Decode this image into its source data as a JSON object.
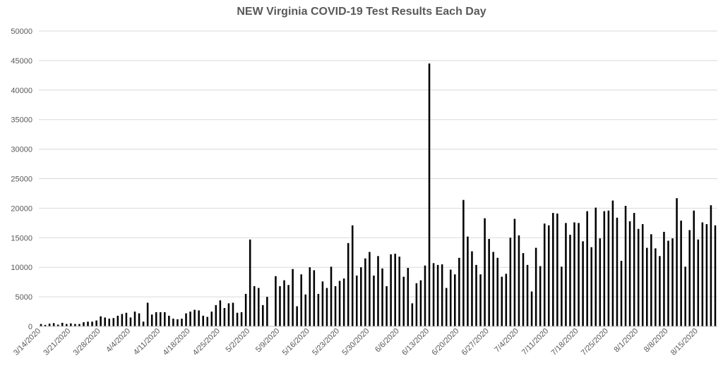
{
  "chart_data": {
    "type": "bar",
    "title": "NEW Virginia COVID-19 Test Results Each Day",
    "xlabel": "",
    "ylabel": "",
    "ylim": [
      0,
      50000
    ],
    "yticks": [
      0,
      5000,
      10000,
      15000,
      20000,
      25000,
      30000,
      35000,
      40000,
      45000,
      50000
    ],
    "grid": true,
    "bar_color": "#000000",
    "start_date": "3/14/2020",
    "xtick_labels": [
      "3/14/2020",
      "3/21/2020",
      "3/28/2020",
      "4/4/2020",
      "4/11/2020",
      "4/18/2020",
      "4/25/2020",
      "5/2/2020",
      "5/9/2020",
      "5/16/2020",
      "5/23/2020",
      "5/30/2020",
      "6/6/2020",
      "6/13/2020",
      "6/20/2020",
      "6/27/2020",
      "7/4/2020",
      "7/11/2020",
      "7/18/2020",
      "7/25/2020",
      "8/1/2020",
      "8/8/2020",
      "8/15/2020"
    ],
    "values": [
      400,
      250,
      450,
      550,
      300,
      600,
      400,
      500,
      400,
      400,
      700,
      800,
      800,
      1000,
      1700,
      1500,
      1300,
      1400,
      1800,
      2100,
      2300,
      1500,
      2500,
      2200,
      800,
      4000,
      2000,
      2400,
      2400,
      2400,
      1800,
      1300,
      1200,
      1300,
      2200,
      2500,
      2800,
      2700,
      1800,
      1600,
      2500,
      3600,
      4400,
      3100,
      3900,
      4000,
      2300,
      2400,
      5500,
      14700,
      6800,
      6500,
      3600,
      5000,
      0,
      8500,
      6800,
      7800,
      7000,
      9700,
      3400,
      8800,
      5400,
      10000,
      9500,
      5500,
      7600,
      6500,
      10100,
      6800,
      7700,
      8100,
      14100,
      17100,
      8600,
      10000,
      11500,
      12600,
      8600,
      11900,
      9800,
      6800,
      12200,
      12300,
      11800,
      8400,
      9900,
      3900,
      7300,
      7800,
      10300,
      44500,
      10700,
      10400,
      10500,
      6500,
      9600,
      8800,
      11600,
      21400,
      15200,
      12700,
      10400,
      8800,
      18300,
      14800,
      12600,
      11600,
      8400,
      8900,
      15000,
      18200,
      15400,
      12400,
      10400,
      5900,
      13300,
      10200,
      17400,
      17100,
      19200,
      19100,
      10100,
      17500,
      15500,
      17600,
      17500,
      14400,
      19500,
      13400,
      20100,
      14900,
      19500,
      19600,
      21300,
      18400,
      11100,
      20400,
      17800,
      19200,
      16500,
      17300,
      13300,
      15600,
      13200,
      11900,
      16000,
      14500,
      14900,
      21700,
      17900,
      10100,
      16300,
      19600,
      14700,
      17600,
      17300,
      20500,
      17100
    ]
  }
}
